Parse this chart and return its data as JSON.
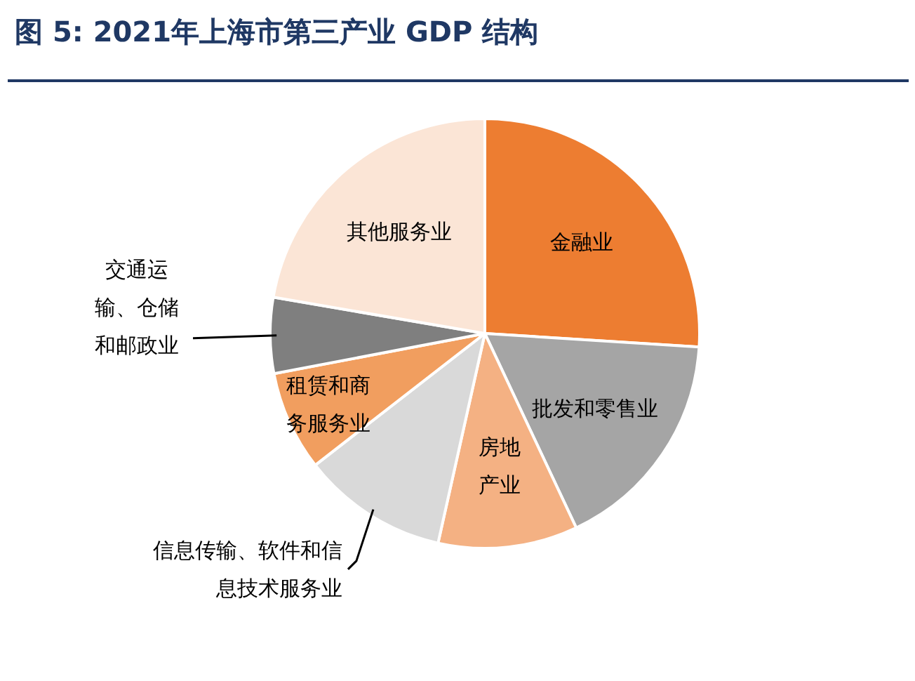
{
  "chart_data": {
    "type": "pie",
    "title": "图 5: 2021年上海市第三产业 GDP 结构",
    "categories": [
      "金融业",
      "批发和零售业",
      "房地产业",
      "信息传输、软件和信息技术服务业",
      "租赁和商务服务业",
      "交通运输、仓储和邮政业",
      "其他服务业"
    ],
    "values": [
      26,
      17,
      10.5,
      11,
      7.5,
      5.7,
      22.3
    ],
    "colors": [
      "#ed7d31",
      "#a5a5a5",
      "#f4b183",
      "#d9d9d9",
      "#f19e5f",
      "#7f7f7f",
      "#fbe5d6"
    ]
  }
}
